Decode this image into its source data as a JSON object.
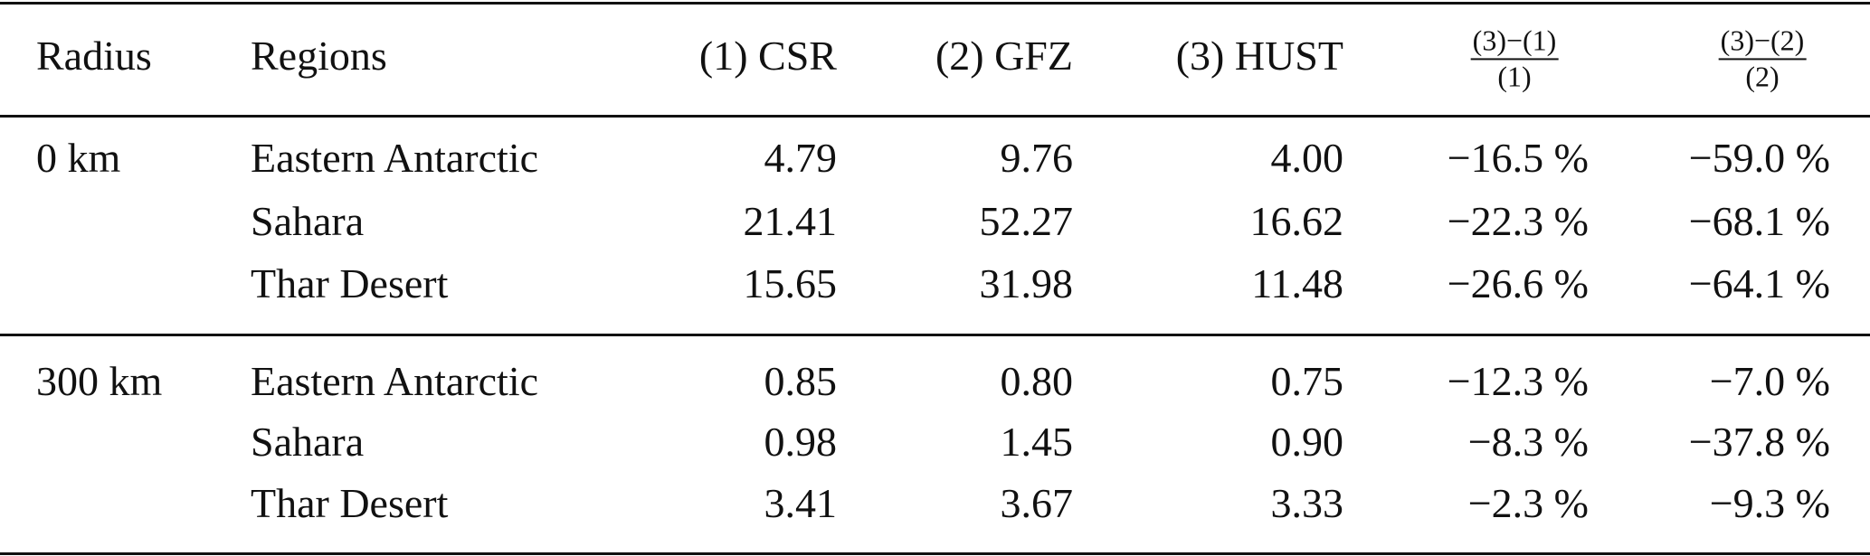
{
  "table": {
    "header": [
      "Radius",
      "Regions",
      "(1) CSR",
      "(2) GFZ",
      "(3) HUST",
      {
        "numerator": "(3)−(1)",
        "denominator": "(1)"
      },
      {
        "numerator": "(3)−(2)",
        "denominator": "(2)"
      }
    ],
    "groups": [
      {
        "radius": "0 km",
        "rows": [
          [
            "Eastern Antarctic",
            "4.79",
            "9.76",
            "4.00",
            "−16.5 %",
            "−59.0 %"
          ],
          [
            "Sahara",
            "21.41",
            "52.27",
            "16.62",
            "−22.3 %",
            "−68.1 %"
          ],
          [
            "Thar Desert",
            "15.65",
            "31.98",
            "11.48",
            "−26.6 %",
            "−64.1 %"
          ]
        ]
      },
      {
        "radius": "300 km",
        "rows": [
          [
            "Eastern Antarctic",
            "0.85",
            "0.80",
            "0.75",
            "−12.3 %",
            "−7.0 %"
          ],
          [
            "Sahara",
            "0.98",
            "1.45",
            "0.90",
            "−8.3 %",
            "−37.8 %"
          ],
          [
            "Thar Desert",
            "3.41",
            "3.67",
            "3.33",
            "−2.3 %",
            "−9.3 %"
          ]
        ]
      }
    ]
  }
}
